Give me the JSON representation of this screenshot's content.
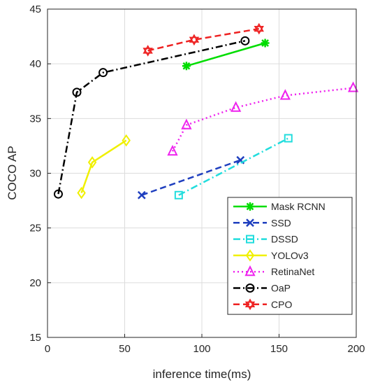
{
  "chart_data": {
    "type": "line",
    "xlabel": "inference time(ms)",
    "ylabel": "COCO AP",
    "xlim": [
      0,
      200
    ],
    "ylim": [
      15,
      45
    ],
    "xticks": [
      0,
      50,
      100,
      150,
      200
    ],
    "yticks": [
      15,
      20,
      25,
      30,
      35,
      40,
      45
    ],
    "grid": true,
    "legend_position": "bottom-right",
    "series": [
      {
        "name": "Mask RCNN",
        "color": "#00dd00",
        "dash": "solid",
        "marker": "asterisk",
        "x": [
          90,
          141
        ],
        "y": [
          39.8,
          41.9
        ]
      },
      {
        "name": "SSD",
        "color": "#1f3fbf",
        "dash": "dashed",
        "marker": "x",
        "x": [
          61,
          125
        ],
        "y": [
          28.0,
          31.2
        ]
      },
      {
        "name": "DSSD",
        "color": "#22dddd",
        "dash": "dashdot",
        "marker": "square",
        "x": [
          85,
          156
        ],
        "y": [
          28.0,
          33.2
        ]
      },
      {
        "name": "YOLOv3",
        "color": "#f0f000",
        "dash": "solid",
        "marker": "diamond",
        "x": [
          22,
          29,
          51
        ],
        "y": [
          28.2,
          31.0,
          33.0
        ]
      },
      {
        "name": "RetinaNet",
        "color": "#ee22ee",
        "dash": "dotted",
        "marker": "triangle",
        "x": [
          81,
          90,
          122,
          154,
          198
        ],
        "y": [
          32.0,
          34.4,
          36.0,
          37.1,
          37.8
        ]
      },
      {
        "name": "OaP",
        "color": "#000000",
        "dash": "dashdot",
        "marker": "circle",
        "x": [
          7,
          19,
          36,
          128
        ],
        "y": [
          28.1,
          37.4,
          39.2,
          42.1
        ]
      },
      {
        "name": "CPO",
        "color": "#ee2222",
        "dash": "dashed",
        "marker": "hexagram",
        "x": [
          65,
          95,
          137
        ],
        "y": [
          41.2,
          42.2,
          43.2
        ]
      }
    ]
  }
}
